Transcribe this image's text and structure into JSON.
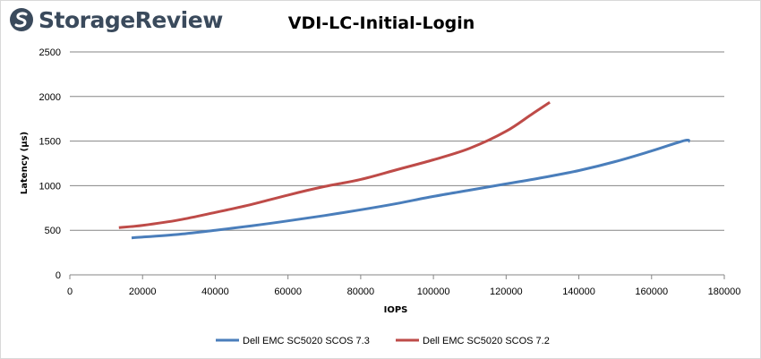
{
  "brand": {
    "name": "StorageReview"
  },
  "chart_data": {
    "type": "line",
    "title": "VDI-LC-Initial-Login",
    "xlabel": "IOPS",
    "ylabel": "Latency (µs)",
    "xlim": [
      0,
      180000
    ],
    "ylim": [
      0,
      2500
    ],
    "x_ticks": [
      0,
      20000,
      40000,
      60000,
      80000,
      100000,
      120000,
      140000,
      160000,
      180000
    ],
    "y_ticks": [
      0,
      500,
      1000,
      1500,
      2000,
      2500
    ],
    "grid": {
      "horizontal": true,
      "vertical": false
    },
    "legend_position": "bottom",
    "series": [
      {
        "name": "Dell EMC SC5020 SCOS 7.3",
        "color": "#4a7ebb",
        "points": [
          [
            17000,
            415
          ],
          [
            30000,
            455
          ],
          [
            40000,
            500
          ],
          [
            50000,
            550
          ],
          [
            60000,
            605
          ],
          [
            70000,
            665
          ],
          [
            80000,
            730
          ],
          [
            90000,
            800
          ],
          [
            100000,
            880
          ],
          [
            110000,
            950
          ],
          [
            120000,
            1020
          ],
          [
            130000,
            1090
          ],
          [
            140000,
            1170
          ],
          [
            150000,
            1270
          ],
          [
            160000,
            1390
          ],
          [
            169000,
            1505
          ],
          [
            170500,
            1495
          ]
        ]
      },
      {
        "name": "Dell EMC SC5020 SCOS 7.2",
        "color": "#be4b48",
        "points": [
          [
            13500,
            530
          ],
          [
            20000,
            555
          ],
          [
            30000,
            615
          ],
          [
            40000,
            700
          ],
          [
            50000,
            790
          ],
          [
            60000,
            895
          ],
          [
            70000,
            990
          ],
          [
            80000,
            1070
          ],
          [
            90000,
            1180
          ],
          [
            100000,
            1290
          ],
          [
            110000,
            1420
          ],
          [
            120000,
            1610
          ],
          [
            127000,
            1800
          ],
          [
            132000,
            1935
          ]
        ]
      }
    ]
  }
}
